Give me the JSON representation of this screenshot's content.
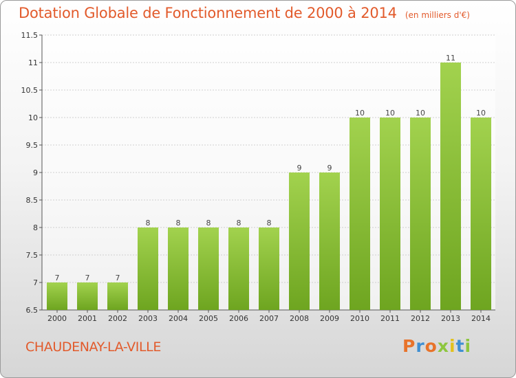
{
  "header": {
    "title": "Dotation Globale de Fonctionnement de 2000 à 2014",
    "subtitle": "(en milliers d'€)"
  },
  "footer": {
    "city": "CHAUDENAY-LA-VILLE",
    "logo_text": "Proxiti",
    "logo_colors": [
      "#e8732a",
      "#3f8fd2",
      "#e8732a",
      "#8dc63f",
      "#e2c11d",
      "#3f8fd2",
      "#8dc63f"
    ]
  },
  "colors": {
    "bar_light": "#a2d24e",
    "bar_dark": "#6ea520",
    "grid": "#cfcfcf",
    "accent": "#e25a2b"
  },
  "chart_data": {
    "type": "bar",
    "categories": [
      "2000",
      "2001",
      "2002",
      "2003",
      "2004",
      "2005",
      "2006",
      "2007",
      "2008",
      "2009",
      "2010",
      "2011",
      "2012",
      "2013",
      "2014"
    ],
    "values": [
      7,
      7,
      7,
      8,
      8,
      8,
      8,
      8,
      9,
      9,
      10,
      10,
      10,
      11,
      10
    ],
    "data_labels": [
      "7",
      "7",
      "7",
      "8",
      "8",
      "8",
      "8",
      "8",
      "9",
      "9",
      "10",
      "10",
      "10",
      "11",
      "10"
    ],
    "yticks": [
      6.5,
      7,
      7.5,
      8,
      8.5,
      9,
      9.5,
      10,
      10.5,
      11,
      11.5
    ],
    "ylim": [
      6.5,
      11.5
    ],
    "grid": true,
    "title": "Dotation Globale de Fonctionnement de 2000 à 2014",
    "xlabel": "",
    "ylabel": ""
  }
}
